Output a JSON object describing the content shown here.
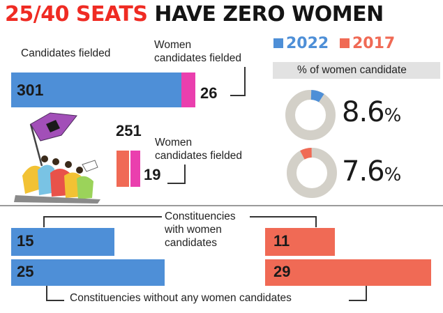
{
  "title": {
    "part1": "25/40 SEATS",
    "part2": "HAVE ZERO WOMEN"
  },
  "legend": [
    {
      "label": "2022",
      "color": "#4e8fd7"
    },
    {
      "label": "2017",
      "color": "#f06a55"
    }
  ],
  "labels": {
    "candidates_fielded": "Candidates fielded",
    "women_fielded_line1": "Women",
    "women_fielded_line2": "candidates fielded",
    "women_fielded_b_line1": "Women",
    "women_fielded_b_line2": "candidates fielded",
    "pct_header": "% of women candidate",
    "constituencies_with_line1": "Constituencies",
    "constituencies_with_line2": "with women",
    "constituencies_with_line3": "candidates",
    "constituencies_without": "Constituencies without any women candidates"
  },
  "pct_text": {
    "y2022_num": "8.6",
    "y2022_sign": "%",
    "y2017_num": "7.6",
    "y2017_sign": "%"
  },
  "chart_data": [
    {
      "type": "bar",
      "title": "Candidates fielded",
      "categories": [
        "2022",
        "2017"
      ],
      "series": [
        {
          "name": "Candidates fielded",
          "values": [
            301,
            251
          ]
        },
        {
          "name": "Women candidates fielded",
          "values": [
            26,
            19
          ]
        }
      ]
    },
    {
      "type": "pie",
      "title": "% of women candidate",
      "categories": [
        "2022",
        "2017"
      ],
      "values": [
        8.6,
        7.6
      ]
    },
    {
      "type": "bar",
      "categories": [
        "2022",
        "2017"
      ],
      "series": [
        {
          "name": "Constituencies with women candidates",
          "values": [
            15,
            11
          ]
        },
        {
          "name": "Constituencies without any women candidates",
          "values": [
            25,
            29
          ]
        }
      ]
    }
  ],
  "colors": {
    "blue": "#4e8fd7",
    "red": "#f06a55",
    "pink": "#ea3fae",
    "donut_bg": "#d3d0c8",
    "figure_purple": "#a24fb8"
  },
  "icons": {
    "illustration": "women-marching-flag-illustration"
  }
}
